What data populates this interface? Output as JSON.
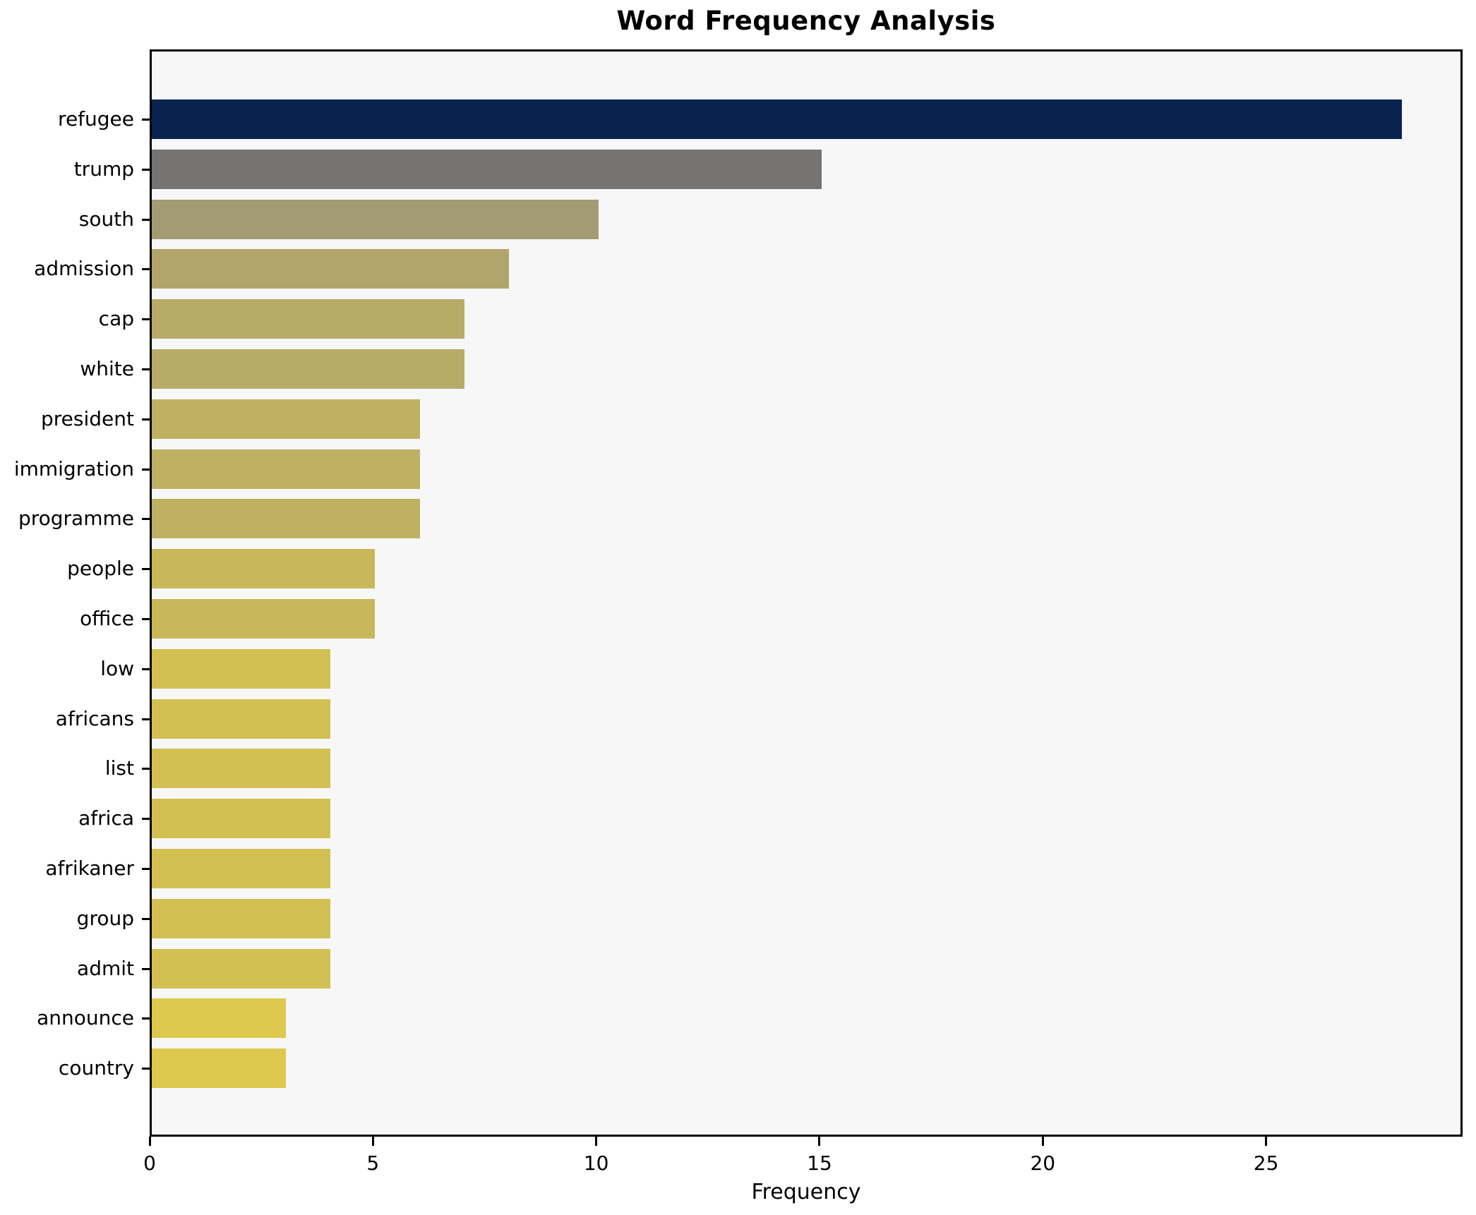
{
  "chart_data": {
    "type": "bar",
    "orientation": "horizontal",
    "title": "Word Frequency Analysis",
    "xlabel": "Frequency",
    "ylabel": "",
    "xlim": [
      0,
      29.4
    ],
    "grid": false,
    "legend": false,
    "xticks": [
      0,
      5,
      10,
      15,
      20,
      25
    ],
    "categories": [
      "refugee",
      "trump",
      "south",
      "admission",
      "cap",
      "white",
      "president",
      "immigration",
      "programme",
      "people",
      "office",
      "low",
      "africans",
      "list",
      "africa",
      "afrikaner",
      "group",
      "admit",
      "announce",
      "country"
    ],
    "values": [
      28,
      15,
      10,
      8,
      7,
      7,
      6,
      6,
      6,
      5,
      5,
      4,
      4,
      4,
      4,
      4,
      4,
      4,
      3,
      3
    ],
    "bars": [
      {
        "label": "refugee",
        "value": 28,
        "color": "#08244e"
      },
      {
        "label": "trump",
        "value": 15,
        "color": "#757473"
      },
      {
        "label": "south",
        "value": 10,
        "color": "#a29b74"
      },
      {
        "label": "admission",
        "value": 8,
        "color": "#b1a56b"
      },
      {
        "label": "cap",
        "value": 7,
        "color": "#b7ab67"
      },
      {
        "label": "white",
        "value": 7,
        "color": "#b7ab67"
      },
      {
        "label": "president",
        "value": 6,
        "color": "#bfb162"
      },
      {
        "label": "immigration",
        "value": 6,
        "color": "#bfb162"
      },
      {
        "label": "programme",
        "value": 6,
        "color": "#bfb162"
      },
      {
        "label": "people",
        "value": 5,
        "color": "#c8b85a"
      },
      {
        "label": "office",
        "value": 5,
        "color": "#c8b85a"
      },
      {
        "label": "low",
        "value": 4,
        "color": "#d2c053"
      },
      {
        "label": "africans",
        "value": 4,
        "color": "#d2c053"
      },
      {
        "label": "list",
        "value": 4,
        "color": "#d2c053"
      },
      {
        "label": "africa",
        "value": 4,
        "color": "#d2c053"
      },
      {
        "label": "afrikaner",
        "value": 4,
        "color": "#d2c053"
      },
      {
        "label": "group",
        "value": 4,
        "color": "#d2c053"
      },
      {
        "label": "admit",
        "value": 4,
        "color": "#d2c053"
      },
      {
        "label": "announce",
        "value": 3,
        "color": "#dcc94e"
      },
      {
        "label": "country",
        "value": 3,
        "color": "#dcc94e"
      }
    ],
    "colors": {
      "plot_background": "#f7f7f7",
      "figure_background": "#ffffff",
      "axis": "#000000",
      "text": "#000000"
    }
  }
}
